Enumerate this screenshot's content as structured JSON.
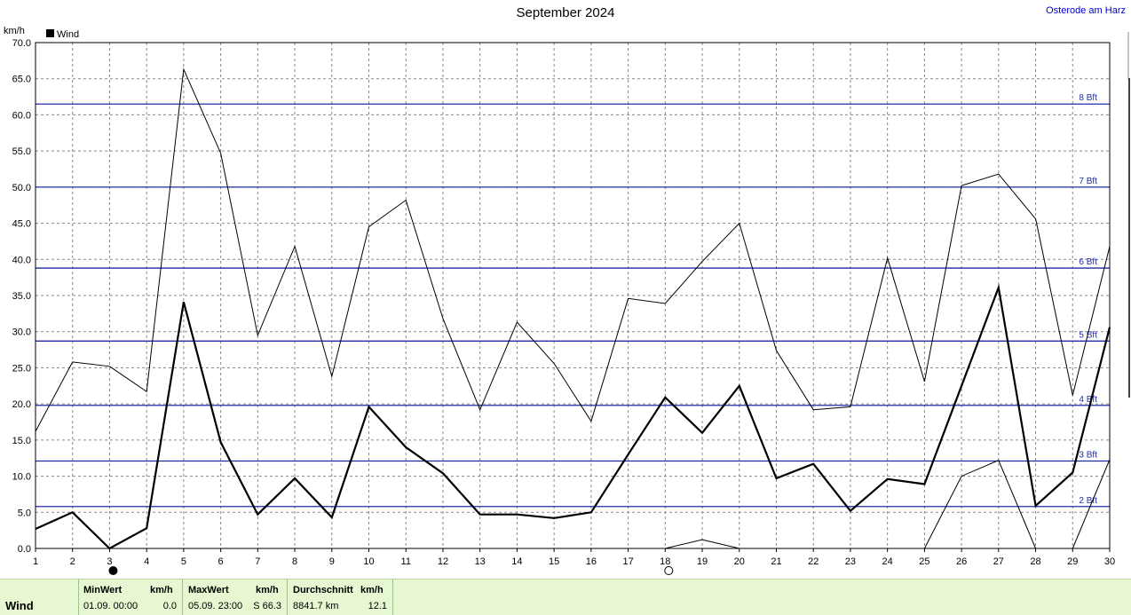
{
  "header": {
    "title": "September 2024",
    "location": "Osterode am Harz"
  },
  "chart_data": {
    "type": "line",
    "ylabel": "km/h",
    "ylim": [
      0,
      70
    ],
    "yticks": [
      "0.0",
      "5.0",
      "10.0",
      "15.0",
      "20.0",
      "25.0",
      "30.0",
      "35.0",
      "40.0",
      "45.0",
      "50.0",
      "55.0",
      "60.0",
      "65.0",
      "70.0"
    ],
    "xlim": [
      1,
      30
    ],
    "categories": [
      "1",
      "2",
      "3",
      "4",
      "5",
      "6",
      "7",
      "8",
      "9",
      "10",
      "11",
      "12",
      "13",
      "14",
      "15",
      "16",
      "17",
      "18",
      "19",
      "20",
      "21",
      "22",
      "23",
      "24",
      "25",
      "26",
      "27",
      "28",
      "29",
      "30"
    ],
    "grid": true,
    "legend": {
      "label": "Wind",
      "placement": "top-left"
    },
    "series": [
      {
        "name": "Wind",
        "role": "mean",
        "stroke": "#000000",
        "width": 2.2,
        "values": [
          2.7,
          5.0,
          0.0,
          2.8,
          34.1,
          14.7,
          4.7,
          9.7,
          4.3,
          19.6,
          14.0,
          10.4,
          4.7,
          4.7,
          4.2,
          5.0,
          13.0,
          20.9,
          16.0,
          22.5,
          9.7,
          11.7,
          5.2,
          9.6,
          8.9,
          22.5,
          36.1,
          5.9,
          10.5,
          30.6
        ]
      },
      {
        "role": "max",
        "stroke": "#000000",
        "width": 1,
        "values": [
          16.2,
          25.8,
          25.2,
          21.7,
          66.3,
          54.7,
          29.5,
          41.8,
          23.8,
          44.5,
          48.2,
          31.8,
          19.2,
          31.3,
          25.6,
          17.6,
          34.6,
          33.9,
          39.7,
          45.0,
          27.4,
          19.2,
          19.6,
          40.2,
          23.1,
          50.2,
          51.8,
          45.6,
          21.2,
          41.8
        ]
      },
      {
        "role": "min",
        "stroke": "#000000",
        "width": 1,
        "segments": [
          {
            "x": [
              18,
              19,
              20
            ],
            "y": [
              0.0,
              1.2,
              0.0
            ]
          },
          {
            "x": [
              25,
              26,
              27,
              28
            ],
            "y": [
              0.0,
              10.0,
              12.2,
              0.0
            ]
          },
          {
            "x": [
              29,
              30
            ],
            "y": [
              0.0,
              12.3
            ]
          }
        ]
      }
    ],
    "beaufort_lines": [
      {
        "label": "2 Bft",
        "value": 5.8
      },
      {
        "label": "3 Bft",
        "value": 12.1
      },
      {
        "label": "4 Bft",
        "value": 19.8
      },
      {
        "label": "5 Bft",
        "value": 28.7
      },
      {
        "label": "6 Bft",
        "value": 38.8
      },
      {
        "label": "7 Bft",
        "value": 50.0
      },
      {
        "label": "8 Bft",
        "value": 61.5
      }
    ],
    "line_color": "#1f2ca8",
    "moon_markers": [
      {
        "day": 3,
        "phase": "new-moon"
      },
      {
        "day": 18,
        "phase": "full-moon"
      }
    ]
  },
  "footer": {
    "row_label": "Wind",
    "min": {
      "header": "MinWert",
      "unit": "km/h",
      "date": "01.09.  00:00",
      "value": "0.0"
    },
    "max": {
      "header": "MaxWert",
      "unit": "km/h",
      "date": "05.09.  23:00",
      "value": "S  66.3"
    },
    "avg": {
      "header": "Durchschnitt",
      "unit": "km/h",
      "distance": "8841.7 km",
      "value": "12.1"
    }
  }
}
